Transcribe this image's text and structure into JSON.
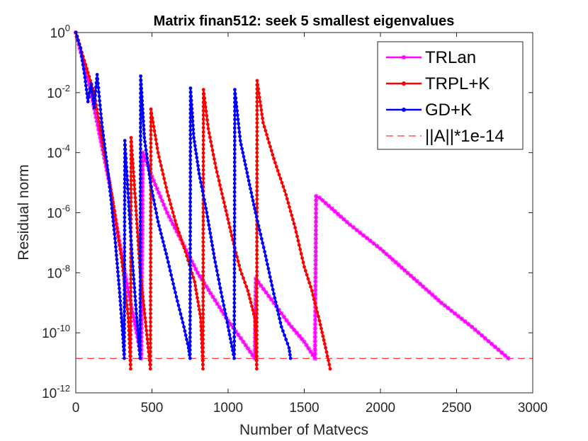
{
  "chart_data": {
    "type": "line",
    "title": "Matrix finan512: seek 5 smallest eigenvalues",
    "xlabel": "Number of Matvecs",
    "ylabel": "Residual norm",
    "xlim": [
      0,
      3000
    ],
    "ylim_log10": [
      -12,
      0
    ],
    "yscale": "log",
    "x_ticks": [
      {
        "value": 0,
        "label": "0"
      },
      {
        "value": 500,
        "label": "500"
      },
      {
        "value": 1000,
        "label": "1000"
      },
      {
        "value": 1500,
        "label": "1500"
      },
      {
        "value": 2000,
        "label": "2000"
      },
      {
        "value": 2500,
        "label": "2500"
      },
      {
        "value": 3000,
        "label": "3000"
      }
    ],
    "y_ticks": [
      {
        "exp": 0,
        "base": "10",
        "sup": "0"
      },
      {
        "exp": -2,
        "base": "10",
        "sup": "-2"
      },
      {
        "exp": -4,
        "base": "10",
        "sup": "-4"
      },
      {
        "exp": -6,
        "base": "10",
        "sup": "-6"
      },
      {
        "exp": -8,
        "base": "10",
        "sup": "-8"
      },
      {
        "exp": -10,
        "base": "10",
        "sup": "-10"
      },
      {
        "exp": -12,
        "base": "10",
        "sup": "-12"
      }
    ],
    "legend_position": "top-right",
    "threshold_log10": -10.85,
    "series": [
      {
        "name": "TRLan",
        "color": "#ff00ff",
        "marker": "star",
        "points_log10": [
          [
            0,
            0
          ],
          [
            100,
            -2.0
          ],
          [
            160,
            -3.5
          ],
          [
            220,
            -5.0
          ],
          [
            280,
            -6.8
          ],
          [
            340,
            -8.5
          ],
          [
            400,
            -10.0
          ],
          [
            430,
            -10.85
          ],
          [
            440,
            -4.0
          ],
          [
            500,
            -4.8
          ],
          [
            600,
            -6.0
          ],
          [
            700,
            -7.0
          ],
          [
            800,
            -8.0
          ],
          [
            900,
            -8.8
          ],
          [
            1000,
            -9.6
          ],
          [
            1100,
            -10.3
          ],
          [
            1175,
            -10.85
          ],
          [
            1182,
            -8.2
          ],
          [
            1300,
            -9.0
          ],
          [
            1400,
            -9.7
          ],
          [
            1500,
            -10.3
          ],
          [
            1570,
            -10.85
          ],
          [
            1578,
            -5.45
          ],
          [
            1600,
            -5.5
          ],
          [
            1800,
            -6.4
          ],
          [
            2000,
            -7.2
          ],
          [
            2200,
            -8.1
          ],
          [
            2400,
            -9.0
          ],
          [
            2600,
            -9.8
          ],
          [
            2840,
            -10.85
          ]
        ]
      },
      {
        "name": "TRPL+K",
        "color": "#ff0000",
        "marker": "dot",
        "points_log10": [
          [
            0,
            0
          ],
          [
            120,
            -2.0
          ],
          [
            180,
            -3.8
          ],
          [
            240,
            -5.5
          ],
          [
            300,
            -7.5
          ],
          [
            345,
            -9.5
          ],
          [
            360,
            -11.2
          ],
          [
            363,
            -3.5
          ],
          [
            390,
            -5.5
          ],
          [
            420,
            -7.8
          ],
          [
            455,
            -9.5
          ],
          [
            490,
            -11.2
          ],
          [
            493,
            -2.55
          ],
          [
            540,
            -4.0
          ],
          [
            600,
            -5.3
          ],
          [
            660,
            -6.4
          ],
          [
            720,
            -7.3
          ],
          [
            780,
            -8.3
          ],
          [
            820,
            -9.5
          ],
          [
            835,
            -11.2
          ],
          [
            838,
            -1.9
          ],
          [
            870,
            -3.2
          ],
          [
            920,
            -4.5
          ],
          [
            980,
            -5.8
          ],
          [
            1030,
            -6.9
          ],
          [
            1080,
            -7.9
          ],
          [
            1130,
            -8.6
          ],
          [
            1175,
            -9.5
          ],
          [
            1188,
            -11.2
          ],
          [
            1190,
            -1.6
          ],
          [
            1230,
            -3.0
          ],
          [
            1300,
            -4.2
          ],
          [
            1380,
            -5.4
          ],
          [
            1440,
            -6.5
          ],
          [
            1500,
            -7.8
          ],
          [
            1550,
            -8.6
          ],
          [
            1600,
            -9.6
          ],
          [
            1640,
            -10.5
          ],
          [
            1670,
            -11.2
          ]
        ]
      },
      {
        "name": "GD+K",
        "color": "#0000ff",
        "marker": "dot",
        "points_log10": [
          [
            0,
            0
          ],
          [
            30,
            -0.5
          ],
          [
            60,
            -1.5
          ],
          [
            80,
            -2.3
          ],
          [
            100,
            -1.7
          ],
          [
            120,
            -2.5
          ],
          [
            140,
            -1.4
          ],
          [
            170,
            -3.0
          ],
          [
            220,
            -5.0
          ],
          [
            260,
            -7.0
          ],
          [
            290,
            -8.8
          ],
          [
            310,
            -10.2
          ],
          [
            318,
            -10.85
          ],
          [
            322,
            -3.6
          ],
          [
            345,
            -5.5
          ],
          [
            370,
            -7.5
          ],
          [
            400,
            -9.5
          ],
          [
            422,
            -10.85
          ],
          [
            426,
            -1.45
          ],
          [
            450,
            -3.5
          ],
          [
            490,
            -5.0
          ],
          [
            540,
            -6.3
          ],
          [
            600,
            -7.5
          ],
          [
            660,
            -8.8
          ],
          [
            710,
            -9.8
          ],
          [
            740,
            -10.5
          ],
          [
            750,
            -10.85
          ],
          [
            753,
            -1.85
          ],
          [
            775,
            -3.5
          ],
          [
            810,
            -4.7
          ],
          [
            860,
            -6.0
          ],
          [
            910,
            -7.5
          ],
          [
            960,
            -8.8
          ],
          [
            1000,
            -9.8
          ],
          [
            1040,
            -10.85
          ],
          [
            1044,
            -1.9
          ],
          [
            1080,
            -3.6
          ],
          [
            1130,
            -4.8
          ],
          [
            1180,
            -6.0
          ],
          [
            1240,
            -7.3
          ],
          [
            1300,
            -8.7
          ],
          [
            1350,
            -9.8
          ],
          [
            1400,
            -10.5
          ],
          [
            1410,
            -10.85
          ]
        ]
      },
      {
        "name": "||A||*1e-14",
        "color": "#ff0000",
        "style": "dashed"
      }
    ]
  }
}
